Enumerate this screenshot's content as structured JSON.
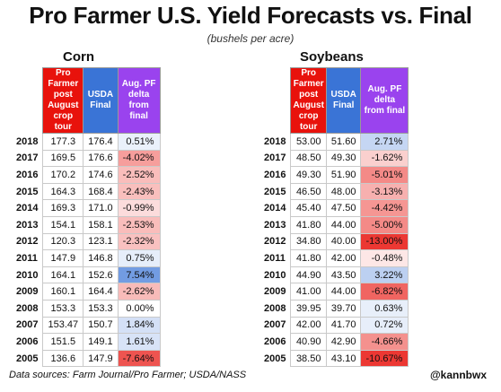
{
  "title": "Pro Farmer U.S. Yield Forecasts vs. Final",
  "subtitle": "(bushels per acre)",
  "headers": {
    "pf": "Pro Farmer post August crop tour",
    "usda": "USDA Final",
    "delta": "Aug. PF delta from final"
  },
  "colors": {
    "pf_header": "#e8120c",
    "usda_header": "#3a74d6",
    "delta_header": "#9a43ee",
    "positive": "#3a74d6",
    "negative": "#e8120c"
  },
  "footer": "Data sources: Farm Journal/Pro Farmer; USDA/NASS",
  "handle": "@kannbwx",
  "chart_data": [
    {
      "type": "table",
      "title": "Corn",
      "columns": [
        "Pro Farmer post August crop tour",
        "USDA Final",
        "Aug. PF delta from final"
      ],
      "rows": [
        {
          "year": "2018",
          "pf": "177.3",
          "usda": "176.4",
          "delta": "0.51%",
          "delta_value": 0.51
        },
        {
          "year": "2017",
          "pf": "169.5",
          "usda": "176.6",
          "delta": "-4.02%",
          "delta_value": -4.02
        },
        {
          "year": "2016",
          "pf": "170.2",
          "usda": "174.6",
          "delta": "-2.52%",
          "delta_value": -2.52
        },
        {
          "year": "2015",
          "pf": "164.3",
          "usda": "168.4",
          "delta": "-2.43%",
          "delta_value": -2.43
        },
        {
          "year": "2014",
          "pf": "169.3",
          "usda": "171.0",
          "delta": "-0.99%",
          "delta_value": -0.99
        },
        {
          "year": "2013",
          "pf": "154.1",
          "usda": "158.1",
          "delta": "-2.53%",
          "delta_value": -2.53
        },
        {
          "year": "2012",
          "pf": "120.3",
          "usda": "123.1",
          "delta": "-2.32%",
          "delta_value": -2.32
        },
        {
          "year": "2011",
          "pf": "147.9",
          "usda": "146.8",
          "delta": "0.75%",
          "delta_value": 0.75
        },
        {
          "year": "2010",
          "pf": "164.1",
          "usda": "152.6",
          "delta": "7.54%",
          "delta_value": 7.54
        },
        {
          "year": "2009",
          "pf": "160.1",
          "usda": "164.4",
          "delta": "-2.62%",
          "delta_value": -2.62
        },
        {
          "year": "2008",
          "pf": "153.3",
          "usda": "153.3",
          "delta": "0.00%",
          "delta_value": 0.0
        },
        {
          "year": "2007",
          "pf": "153.47",
          "usda": "150.7",
          "delta": "1.84%",
          "delta_value": 1.84
        },
        {
          "year": "2006",
          "pf": "151.5",
          "usda": "149.1",
          "delta": "1.61%",
          "delta_value": 1.61
        },
        {
          "year": "2005",
          "pf": "136.6",
          "usda": "147.9",
          "delta": "-7.64%",
          "delta_value": -7.64
        }
      ]
    },
    {
      "type": "table",
      "title": "Soybeans",
      "columns": [
        "Pro Farmer post August crop tour",
        "USDA Final",
        "Aug. PF delta from final"
      ],
      "rows": [
        {
          "year": "2018",
          "pf": "53.00",
          "usda": "51.60",
          "delta": "2.71%",
          "delta_value": 2.71
        },
        {
          "year": "2017",
          "pf": "48.50",
          "usda": "49.30",
          "delta": "-1.62%",
          "delta_value": -1.62
        },
        {
          "year": "2016",
          "pf": "49.30",
          "usda": "51.90",
          "delta": "-5.01%",
          "delta_value": -5.01
        },
        {
          "year": "2015",
          "pf": "46.50",
          "usda": "48.00",
          "delta": "-3.13%",
          "delta_value": -3.13
        },
        {
          "year": "2014",
          "pf": "45.40",
          "usda": "47.50",
          "delta": "-4.42%",
          "delta_value": -4.42
        },
        {
          "year": "2013",
          "pf": "41.80",
          "usda": "44.00",
          "delta": "-5.00%",
          "delta_value": -5.0
        },
        {
          "year": "2012",
          "pf": "34.80",
          "usda": "40.00",
          "delta": "-13.00%",
          "delta_value": -13.0
        },
        {
          "year": "2011",
          "pf": "41.80",
          "usda": "42.00",
          "delta": "-0.48%",
          "delta_value": -0.48
        },
        {
          "year": "2010",
          "pf": "44.90",
          "usda": "43.50",
          "delta": "3.22%",
          "delta_value": 3.22
        },
        {
          "year": "2009",
          "pf": "41.00",
          "usda": "44.00",
          "delta": "-6.82%",
          "delta_value": -6.82
        },
        {
          "year": "2008",
          "pf": "39.95",
          "usda": "39.70",
          "delta": "0.63%",
          "delta_value": 0.63
        },
        {
          "year": "2007",
          "pf": "42.00",
          "usda": "41.70",
          "delta": "0.72%",
          "delta_value": 0.72
        },
        {
          "year": "2006",
          "pf": "40.90",
          "usda": "42.90",
          "delta": "-4.66%",
          "delta_value": -4.66
        },
        {
          "year": "2005",
          "pf": "38.50",
          "usda": "43.10",
          "delta": "-10.67%",
          "delta_value": -10.67
        }
      ]
    }
  ]
}
